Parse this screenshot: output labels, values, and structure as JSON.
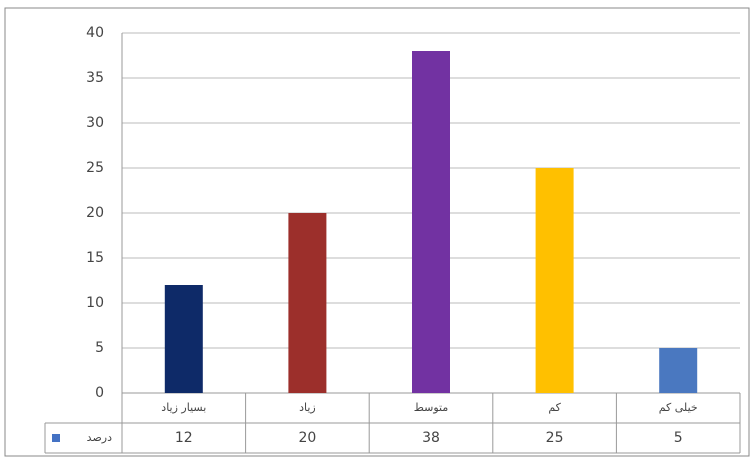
{
  "chart_data": {
    "type": "bar",
    "categories": [
      "بسیار زیاد",
      "زیاد",
      "متوسط",
      "کم",
      "خیلی کم"
    ],
    "series": [
      {
        "name": "درصد",
        "color": "#4472c4",
        "colors": [
          "#0e2a68",
          "#9c2f2b",
          "#7232a2",
          "#ffc000",
          "#4a78c0"
        ],
        "values": [
          12,
          20,
          38,
          25,
          5
        ]
      }
    ],
    "ylim": [
      0,
      40
    ],
    "yticks": [
      0,
      5,
      10,
      15,
      20,
      25,
      30,
      35,
      40
    ],
    "grid": true,
    "data_table": true
  }
}
